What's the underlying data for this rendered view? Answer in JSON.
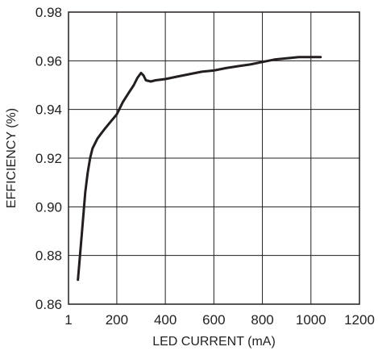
{
  "chart_data": {
    "type": "line",
    "title": "",
    "xlabel": "LED CURRENT (mA)",
    "ylabel": "EFFICIENCY (%)",
    "xlim": [
      1,
      1200
    ],
    "ylim": [
      0.86,
      0.98
    ],
    "x_ticks": [
      1,
      200,
      400,
      600,
      800,
      1000,
      1200
    ],
    "x_tick_labels": [
      "1",
      "200",
      "400",
      "600",
      "800",
      "1000",
      "1200"
    ],
    "y_ticks": [
      0.86,
      0.88,
      0.9,
      0.92,
      0.94,
      0.96,
      0.98
    ],
    "y_tick_labels": [
      "0.86",
      "0.88",
      "0.90",
      "0.92",
      "0.94",
      "0.96",
      "0.98"
    ],
    "grid": true,
    "series": [
      {
        "x": [
          40,
          55,
          70,
          80,
          90,
          100,
          110,
          120,
          135,
          150,
          175,
          200,
          225,
          250,
          270,
          285,
          300,
          310,
          320,
          340,
          360,
          400,
          450,
          500,
          550,
          600,
          650,
          700,
          750,
          800,
          850,
          900,
          950,
          1000,
          1040
        ],
        "y": [
          0.87,
          0.888,
          0.906,
          0.914,
          0.92,
          0.924,
          0.926,
          0.928,
          0.93,
          0.932,
          0.935,
          0.938,
          0.943,
          0.947,
          0.95,
          0.953,
          0.955,
          0.954,
          0.952,
          0.9515,
          0.952,
          0.9525,
          0.9535,
          0.9545,
          0.9555,
          0.956,
          0.957,
          0.9578,
          0.9585,
          0.9595,
          0.9605,
          0.961,
          0.9615,
          0.9615,
          0.9615
        ]
      }
    ]
  }
}
